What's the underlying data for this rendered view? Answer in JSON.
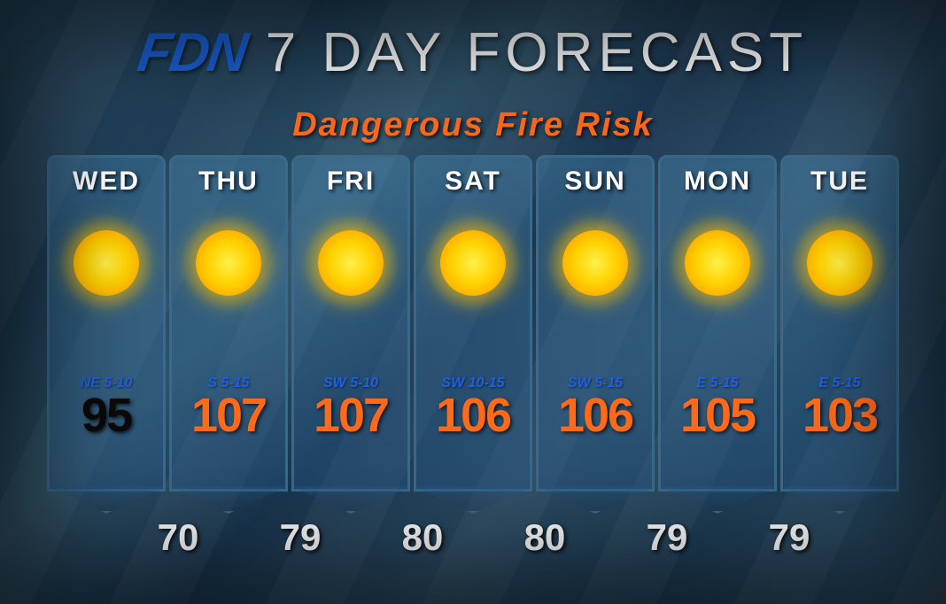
{
  "header": {
    "logo": "FDN",
    "title": "7 DAY FORECAST"
  },
  "warning": {
    "text": "Dangerous Fire Risk",
    "color": "#ff6a1a"
  },
  "days": [
    {
      "label": "WED",
      "wind": "NE 5-10",
      "high": "95",
      "high_color": "#0a0a0a",
      "condition": "sunny"
    },
    {
      "label": "THU",
      "wind": "S 5-15",
      "high": "107",
      "high_color": "#ff6a1a",
      "condition": "sunny"
    },
    {
      "label": "FRI",
      "wind": "SW 5-10",
      "high": "107",
      "high_color": "#ff6a1a",
      "condition": "sunny"
    },
    {
      "label": "SAT",
      "wind": "SW 10-15",
      "high": "106",
      "high_color": "#ff6a1a",
      "condition": "sunny"
    },
    {
      "label": "SUN",
      "wind": "SW 5-15",
      "high": "106",
      "high_color": "#ff6a1a",
      "condition": "sunny"
    },
    {
      "label": "MON",
      "wind": "E 5-15",
      "high": "105",
      "high_color": "#ff6a1a",
      "condition": "sunny"
    },
    {
      "label": "TUE",
      "wind": "E 5-15",
      "high": "103",
      "high_color": "#ff6a1a",
      "condition": "sunny"
    }
  ],
  "lows": [
    "70",
    "79",
    "80",
    "80",
    "79",
    "79"
  ],
  "style": {
    "bg_primary": "#1e3e56",
    "card_border": "#3a6a8a",
    "wind_color": "#2060e0",
    "text_white": "#ffffff",
    "logo_color": "#1a5fd4"
  }
}
